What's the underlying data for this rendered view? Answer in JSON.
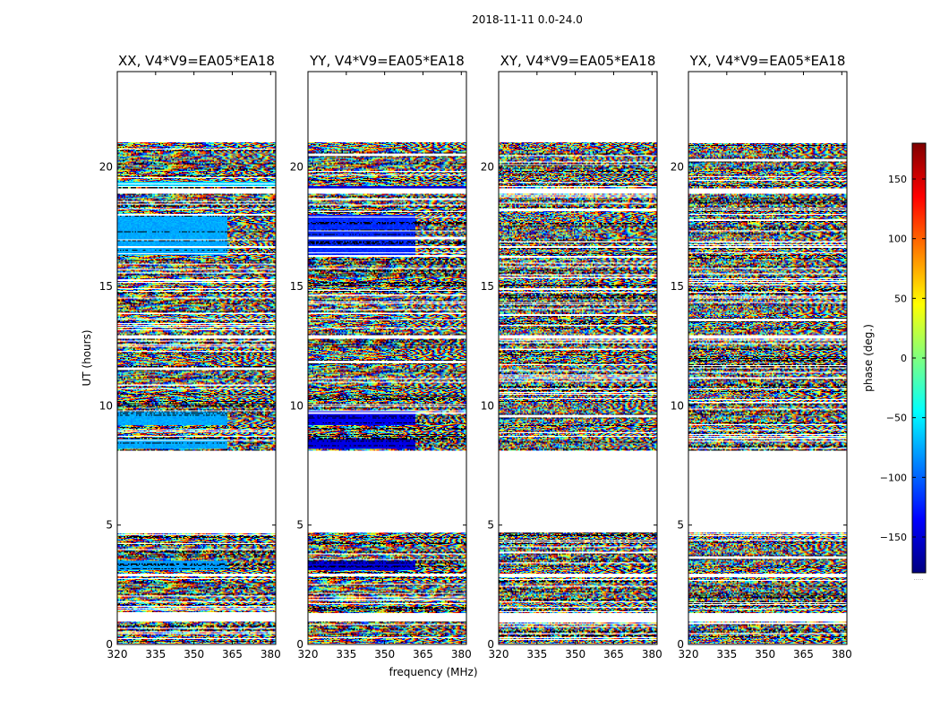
{
  "chart_data": {
    "type": "heatmap",
    "title": "2018-11-11 0.0-24.0",
    "xlabel": "frequency (MHz)",
    "ylabel": "UT (hours)",
    "xlim": [
      320,
      382
    ],
    "ylim": [
      0,
      24
    ],
    "xticks": [
      320,
      335,
      350,
      365,
      380
    ],
    "yticks": [
      0,
      5,
      10,
      15,
      20
    ],
    "colorbar": {
      "label": "phase (deg.)",
      "range": [
        -180,
        180
      ],
      "ticks": [
        -150,
        -100,
        -50,
        0,
        50,
        100,
        150
      ],
      "tick_labels": [
        "−150",
        "−100",
        "−50",
        "0",
        "50",
        "100",
        "150"
      ],
      "colormap": [
        "#00007f",
        "#0000ff",
        "#007fff",
        "#00ffff",
        "#7fff7f",
        "#ffff00",
        "#ff7f00",
        "#ff0000",
        "#7f0000"
      ]
    },
    "panels": [
      {
        "name": "xx",
        "title": "XX, V4*V9=EA05*EA18"
      },
      {
        "name": "yy",
        "title": "YY, V4*V9=EA05*EA18"
      },
      {
        "name": "xy",
        "title": "XY, V4*V9=EA05*EA18"
      },
      {
        "name": "yx",
        "title": "YX, V4*V9=EA05*EA18"
      }
    ],
    "data_blocks_ut_hours": [
      [
        0.05,
        0.95
      ],
      [
        1.3,
        2.85
      ],
      [
        2.95,
        4.7
      ],
      [
        8.1,
        12.8
      ],
      [
        12.95,
        16.6
      ],
      [
        16.7,
        18.9
      ],
      [
        19.1,
        21.05
      ]
    ],
    "flat_phase_regions": [
      {
        "panel": "xx",
        "ut": [
          3.1,
          3.5
        ],
        "freq": [
          320,
          363
        ],
        "phase_deg": -80
      },
      {
        "panel": "xx",
        "ut": [
          8.2,
          8.6
        ],
        "freq": [
          320,
          363
        ],
        "phase_deg": -75
      },
      {
        "panel": "xx",
        "ut": [
          9.2,
          9.8
        ],
        "freq": [
          320,
          363
        ],
        "phase_deg": -75
      },
      {
        "panel": "xx",
        "ut": [
          16.3,
          18.0
        ],
        "freq": [
          320,
          363
        ],
        "phase_deg": -75
      },
      {
        "panel": "xx",
        "ut": [
          19.2,
          19.4
        ],
        "freq": [
          320,
          382
        ],
        "phase_deg": -60
      },
      {
        "panel": "yy",
        "ut": [
          3.1,
          3.5
        ],
        "freq": [
          320,
          362
        ],
        "phase_deg": -150
      },
      {
        "panel": "yy",
        "ut": [
          8.2,
          8.6
        ],
        "freq": [
          320,
          362
        ],
        "phase_deg": -145
      },
      {
        "panel": "yy",
        "ut": [
          9.2,
          9.8
        ],
        "freq": [
          320,
          362
        ],
        "phase_deg": -140
      },
      {
        "panel": "yy",
        "ut": [
          16.3,
          18.0
        ],
        "freq": [
          320,
          362
        ],
        "phase_deg": -120
      },
      {
        "panel": "yy",
        "ut": [
          18.9,
          19.2
        ],
        "freq": [
          320,
          382
        ],
        "phase_deg": -150
      }
    ],
    "footnote": "....."
  }
}
